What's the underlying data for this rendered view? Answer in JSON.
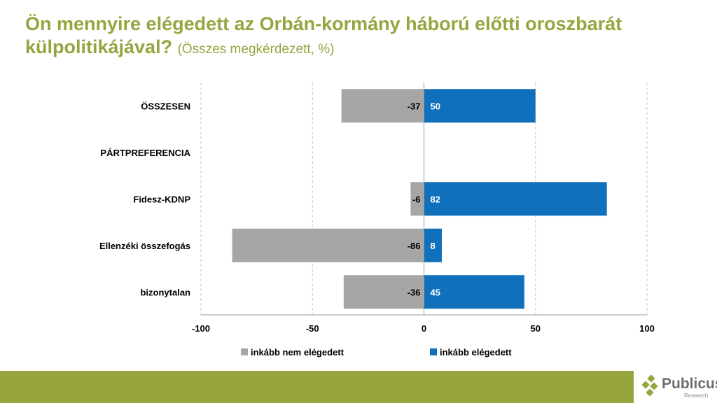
{
  "title": {
    "main": "Ön mennyire elégedett az Orbán-kormány háború előtti oroszbarát külpolitikájával?",
    "subtitle": "(Összes megkérdezett, %)"
  },
  "logo": {
    "name": "Publicus",
    "sub": "Research"
  },
  "chart_data": {
    "type": "bar",
    "orientation": "horizontal-diverging",
    "categories": [
      "ÖSSZESEN",
      "PÁRTPREFERENCIA",
      "Fidesz-KDNP",
      "Ellenzéki összefogás",
      "bizonytalan"
    ],
    "series": [
      {
        "name": "inkább nem elégedett",
        "color": "#a6a6a6",
        "values": [
          -37,
          null,
          -6,
          -86,
          -36
        ]
      },
      {
        "name": "inkább elégedett",
        "color": "#1170bb",
        "values": [
          50,
          null,
          82,
          8,
          45
        ]
      }
    ],
    "xlim": [
      -100,
      100
    ],
    "xticks": [
      -100,
      -50,
      0,
      50,
      100
    ],
    "grid": true,
    "legend": "bottom"
  }
}
